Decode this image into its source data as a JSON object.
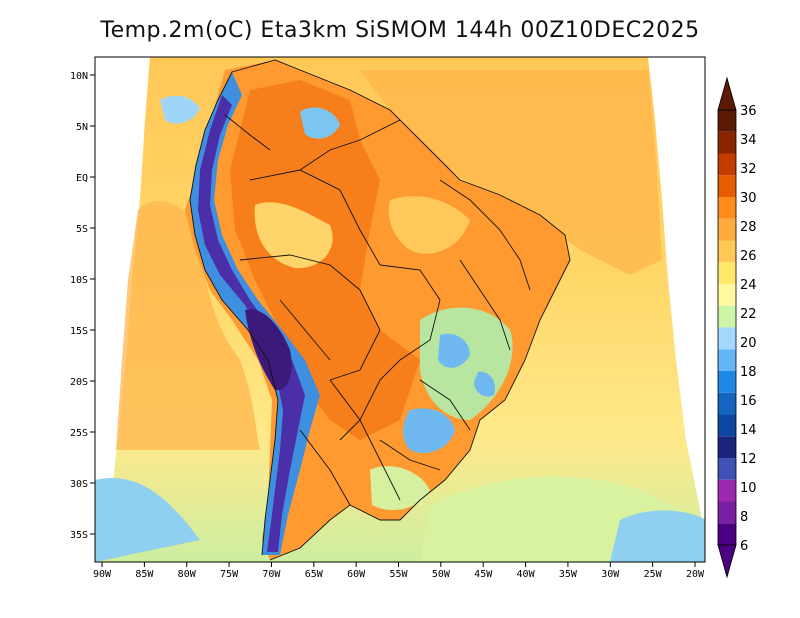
{
  "map": {
    "title": "Temp.2m(oC) Eta3km SiSMOM 144h 00Z10DEC2025",
    "variable": "Temp.2m",
    "units": "oC",
    "model": "Eta3km SiSMOM",
    "forecast_hour": "144h",
    "init_time": "00Z10DEC2025",
    "lat_labels": [
      "10N",
      "5N",
      "EQ",
      "5S",
      "10S",
      "15S",
      "20S",
      "25S",
      "30S",
      "35S"
    ],
    "lon_labels": [
      "90W",
      "85W",
      "80W",
      "75W",
      "70W",
      "65W",
      "60W",
      "55W",
      "50W",
      "45W",
      "40W",
      "35W",
      "30W",
      "25W",
      "20W"
    ],
    "colorbar": {
      "labels": [
        "36",
        "34",
        "32",
        "30",
        "28",
        "26",
        "24",
        "22",
        "20",
        "18",
        "16",
        "14",
        "12",
        "10",
        "8",
        "6"
      ],
      "colors": [
        "#4b0082",
        "#7b1fa2",
        "#9c27b0",
        "#3f51b5",
        "#1a237e",
        "#0d47a1",
        "#1565c0",
        "#1e88e5",
        "#64b5f6",
        "#a5d8ff",
        "#ccf5a8",
        "#fff8a0",
        "#ffe86a",
        "#ffc857",
        "#ffab40",
        "#ff8c1a",
        "#e65c00",
        "#c43d00",
        "#8b2500",
        "#5c1a05"
      ]
    }
  }
}
